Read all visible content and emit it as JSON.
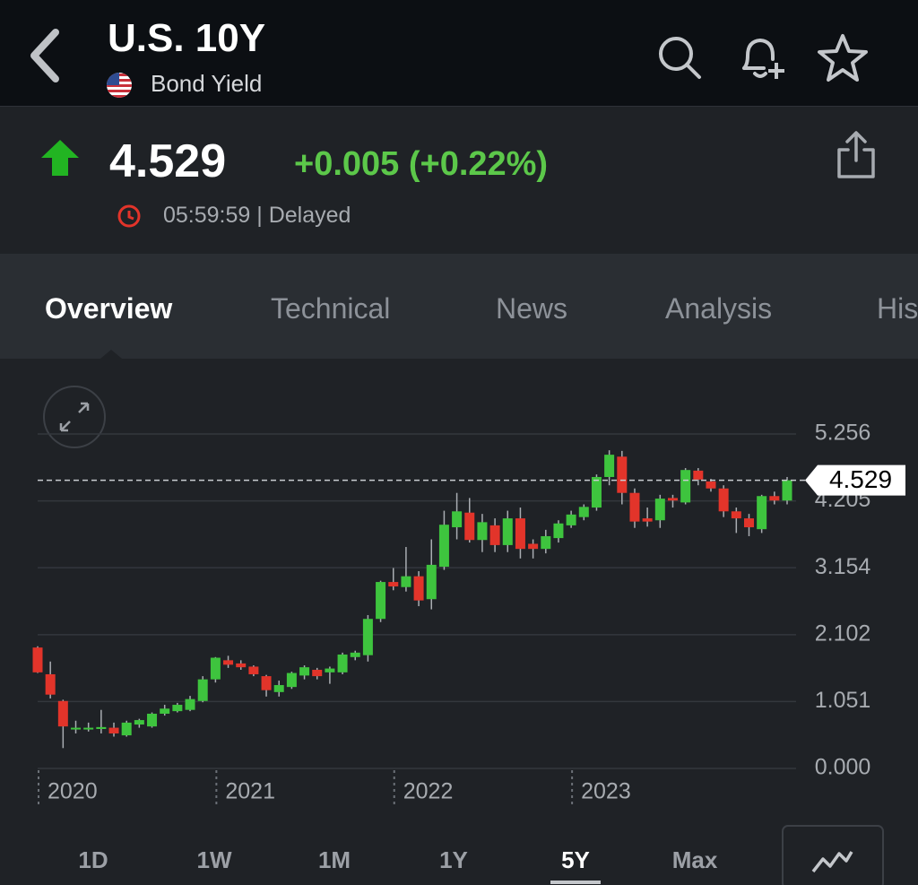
{
  "header": {
    "title": "U.S. 10Y",
    "subtitle": "Bond Yield"
  },
  "quote": {
    "price": "4.529",
    "change": "+0.005 (+0.22%)",
    "time": "05:59:59 | Delayed"
  },
  "tabs": [
    "Overview",
    "Technical",
    "News",
    "Analysis",
    "His"
  ],
  "chart_data": {
    "type": "candlestick",
    "categories": [
      null,
      null,
      null,
      null,
      null,
      null,
      null,
      null,
      null,
      null,
      null,
      null,
      null,
      null,
      null,
      null,
      null,
      null,
      null,
      null,
      null,
      null,
      null,
      null,
      null,
      null,
      null,
      null,
      null,
      null,
      null,
      null,
      null,
      null,
      null,
      null,
      null,
      null,
      null,
      null,
      null,
      null,
      null,
      null,
      null,
      null,
      null,
      null,
      null,
      null,
      null,
      null,
      null,
      null,
      null,
      null,
      null,
      null,
      null,
      null
    ],
    "open": [
      1.9,
      1.48,
      1.06,
      0.62,
      0.62,
      0.62,
      0.64,
      0.52,
      0.69,
      0.66,
      0.86,
      0.9,
      0.92,
      1.06,
      1.4,
      1.7,
      1.65,
      1.6,
      1.45,
      1.2,
      1.28,
      1.46,
      1.55,
      1.51,
      1.51,
      1.75,
      1.78,
      2.35,
      2.93,
      2.85,
      3.02,
      2.66,
      3.17,
      3.79,
      4.02,
      3.59,
      3.82,
      3.51,
      3.93,
      3.53,
      3.45,
      3.62,
      3.82,
      3.95,
      4.1,
      4.58,
      4.9,
      4.33,
      3.93,
      3.9,
      4.25,
      4.18,
      4.68,
      4.51,
      4.4,
      4.04,
      3.93,
      3.76,
      4.28,
      4.21
    ],
    "high": [
      1.92,
      1.68,
      1.08,
      0.75,
      0.72,
      0.92,
      0.72,
      0.75,
      0.78,
      0.88,
      1.0,
      1.03,
      1.14,
      1.45,
      1.75,
      1.77,
      1.7,
      1.62,
      1.47,
      1.38,
      1.52,
      1.62,
      1.58,
      1.6,
      1.82,
      1.85,
      2.41,
      2.95,
      3.15,
      3.48,
      3.1,
      3.6,
      4.05,
      4.33,
      4.25,
      4.0,
      3.93,
      4.05,
      4.1,
      3.6,
      3.75,
      3.9,
      4.05,
      4.15,
      4.62,
      5.0,
      4.99,
      4.4,
      4.1,
      4.3,
      4.3,
      4.72,
      4.72,
      4.55,
      4.45,
      4.1,
      4.0,
      4.3,
      4.35,
      4.58
    ],
    "low": [
      1.5,
      1.1,
      0.32,
      0.55,
      0.58,
      0.55,
      0.5,
      0.5,
      0.64,
      0.64,
      0.83,
      0.88,
      0.9,
      1.04,
      1.35,
      1.58,
      1.55,
      1.45,
      1.13,
      1.13,
      1.25,
      1.4,
      1.4,
      1.33,
      1.48,
      1.7,
      1.68,
      2.3,
      2.8,
      2.78,
      2.55,
      2.5,
      3.12,
      3.6,
      3.55,
      3.4,
      3.4,
      3.4,
      3.3,
      3.3,
      3.38,
      3.55,
      3.78,
      3.9,
      4.05,
      4.45,
      4.15,
      3.78,
      3.8,
      3.78,
      4.1,
      4.15,
      4.45,
      4.35,
      3.95,
      3.7,
      3.65,
      3.7,
      4.15,
      4.15
    ],
    "close": [
      1.51,
      1.16,
      0.66,
      0.64,
      0.64,
      0.65,
      0.55,
      0.72,
      0.76,
      0.86,
      0.94,
      1.0,
      1.09,
      1.4,
      1.74,
      1.63,
      1.59,
      1.48,
      1.23,
      1.31,
      1.5,
      1.59,
      1.45,
      1.57,
      1.79,
      1.82,
      2.35,
      2.93,
      2.86,
      3.02,
      2.64,
      3.2,
      3.83,
      4.04,
      3.59,
      3.87,
      3.51,
      3.93,
      3.45,
      3.45,
      3.65,
      3.85,
      3.99,
      4.11,
      4.58,
      4.93,
      4.33,
      3.88,
      3.88,
      4.24,
      4.21,
      4.69,
      4.54,
      4.4,
      4.04,
      3.93,
      3.79,
      4.28,
      4.21,
      4.529
    ],
    "up_color": "#3ec43e",
    "down_color": "#e2342a",
    "last": 4.529,
    "ylim": [
      0,
      5.256
    ],
    "yticks": [
      {
        "value": 0,
        "label": "0.000"
      },
      1.051,
      2.102,
      3.154,
      4.205,
      5.256
    ],
    "xticks": [
      {
        "value": 0,
        "label": "2020"
      },
      {
        "value": 14,
        "label": "2021"
      },
      {
        "value": 28,
        "label": "2022"
      },
      {
        "value": 42,
        "label": "2023"
      }
    ],
    "grid": true
  },
  "ranges": [
    "1D",
    "1W",
    "1M",
    "1Y",
    "5Y",
    "Max"
  ]
}
